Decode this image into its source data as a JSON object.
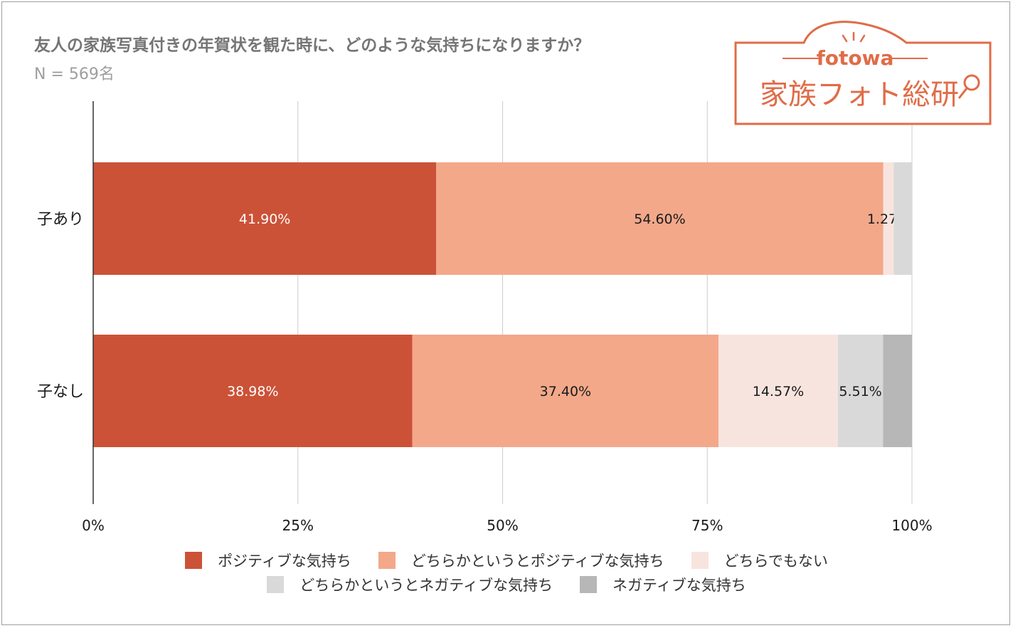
{
  "title": "友人の家族写真付きの年賀状を観た時に、どのような気持ちになりますか？",
  "subtitle": "N = 569名",
  "logo": {
    "brand": "fotowa",
    "name": "家族フォト総研",
    "color": "#e06c48"
  },
  "chart_data": {
    "type": "bar",
    "orientation": "horizontal",
    "stacked": "percent",
    "categories": [
      "子あり",
      "子なし"
    ],
    "series": [
      {
        "name": "ポジティブな気持ち",
        "color": "#cc5237",
        "label_color": "#ffffff",
        "values": [
          41.9,
          38.98
        ],
        "labels": [
          "41.90%",
          "38.98%"
        ]
      },
      {
        "name": "どちらかというとポジティブな気持ち",
        "color": "#f3a88a",
        "label_color": "#1a1a1a",
        "values": [
          54.6,
          37.4
        ],
        "labels": [
          "54.60%",
          "37.40%"
        ]
      },
      {
        "name": "どちらでもない",
        "color": "#f8e4de",
        "label_color": "#1a1a1a",
        "values": [
          1.27,
          14.57
        ],
        "labels": [
          "1.27%",
          "14.57%"
        ]
      },
      {
        "name": "どちらかというとネガティブな気持ち",
        "color": "#d9d9d9",
        "label_color": "#1a1a1a",
        "values": [
          2.23,
          5.51
        ],
        "labels": [
          "",
          "5.51%"
        ]
      },
      {
        "name": "ネガティブな気持ち",
        "color": "#b7b7b7",
        "label_color": "#1a1a1a",
        "values": [
          0.0,
          3.54
        ],
        "labels": [
          "",
          ""
        ]
      }
    ],
    "xlim": [
      0,
      100
    ],
    "xticks": [
      "0%",
      "25%",
      "50%",
      "75%",
      "100%"
    ],
    "grid": true,
    "legend_position": "bottom"
  }
}
